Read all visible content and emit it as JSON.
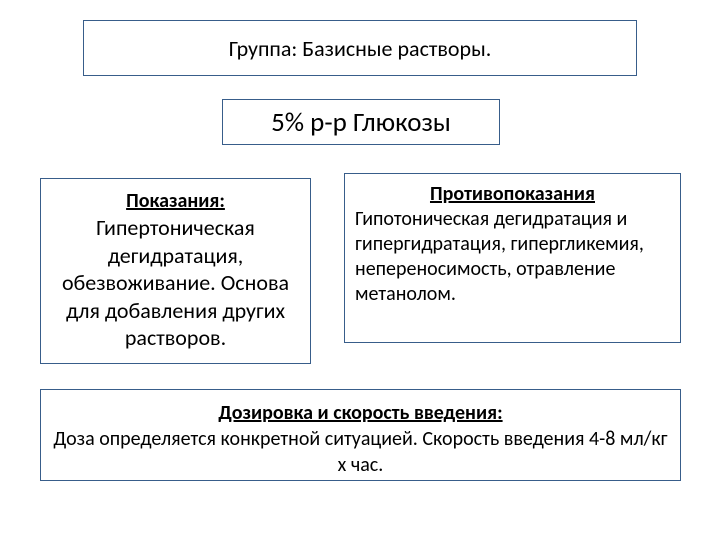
{
  "colors": {
    "border": "#385d8a",
    "text": "#000000",
    "background": "#ffffff"
  },
  "font": {
    "title_size_pt": 27,
    "group_size_pt": 22,
    "body_size_pt": 22,
    "contra_size_pt": 20,
    "dosage_size_pt": 20
  },
  "group": {
    "label": "Группа: Базисные растворы."
  },
  "main_title": "5% р-р Глюкозы",
  "indications": {
    "header": "Показания:",
    "body": "Гипертоническая дегидратация, обезвоживание. Основа для добавления других растворов."
  },
  "contra": {
    "header": "Противопоказания",
    "body": "Гипотоническая дегидратация и гипергидратация, гипергликемия, непереносимость, отравление метанолом."
  },
  "dosage": {
    "header": "Дозировка и скорость введения:",
    "body": "Доза определяется конкретной ситуацией. Скорость введения 4-8 мл/кг х час."
  }
}
